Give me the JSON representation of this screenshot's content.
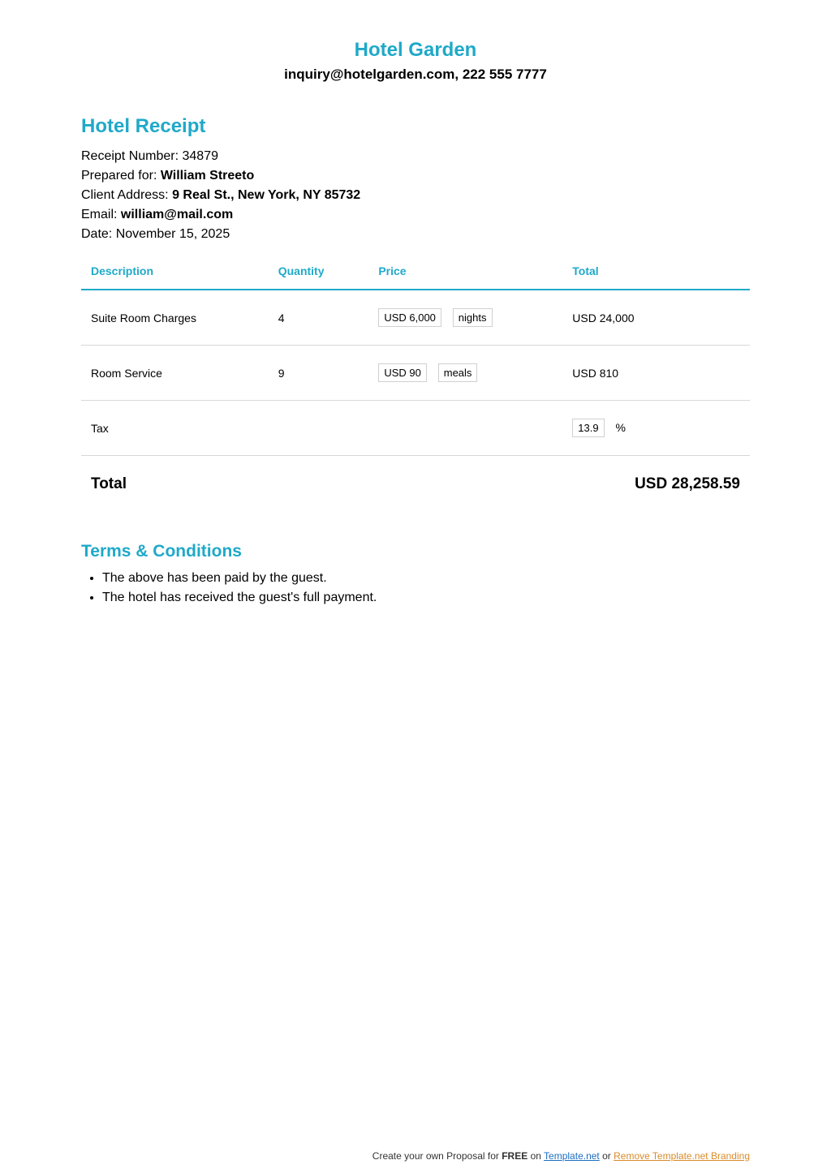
{
  "header": {
    "hotel_name": "Hotel Garden",
    "contact": "inquiry@hotelgarden.com, 222 555 7777"
  },
  "receipt": {
    "title": "Hotel Receipt",
    "number_label": "Receipt Number: ",
    "number": "34879",
    "prepared_for_label": "Prepared for: ",
    "prepared_for": "William Streeto",
    "address_label": "Client Address: ",
    "address": "9 Real St., New York, NY 85732",
    "email_label": "Email: ",
    "email": "william@mail.com",
    "date_label": "Date: ",
    "date": "November 15, 2025"
  },
  "table": {
    "columns": {
      "description": "Description",
      "quantity": "Quantity",
      "price": "Price",
      "total": "Total"
    },
    "rows": [
      {
        "description": "Suite Room Charges",
        "quantity": "4",
        "price": "USD 6,000",
        "unit": "nights",
        "total": "USD 24,000"
      },
      {
        "description": "Room Service",
        "quantity": "9",
        "price": "USD 90",
        "unit": "meals",
        "total": "USD 810"
      }
    ],
    "tax_label": "Tax",
    "tax_value": "13.9",
    "tax_unit": "%",
    "grand_total_label": "Total",
    "grand_total": "USD 28,258.59"
  },
  "terms": {
    "title": "Terms & Conditions",
    "items": [
      "The above has been paid by the guest.",
      "The hotel has received the guest's full payment."
    ]
  },
  "footer": {
    "prefix": "Create your own Proposal for ",
    "free": "FREE",
    "on": " on ",
    "link1": "Template.net",
    "or": "  or ",
    "link2": "Remove Template.net Branding"
  },
  "colors": {
    "accent": "#1fa9c9",
    "border": "#d7d7d7"
  }
}
